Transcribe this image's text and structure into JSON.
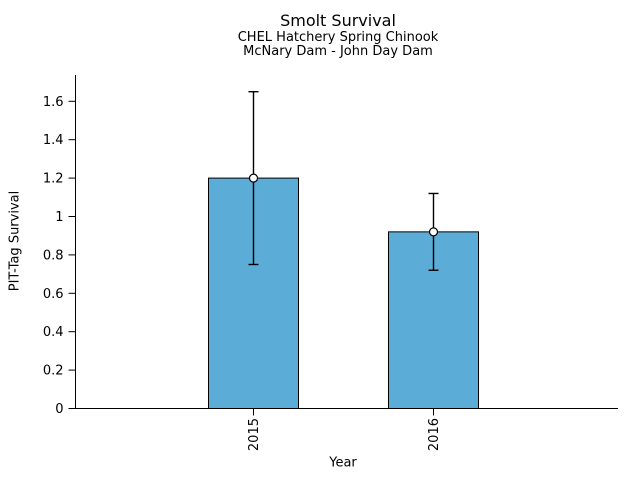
{
  "chart_data": {
    "type": "bar",
    "title": "Smolt Survival",
    "subtitle1": "CHEL Hatchery Spring Chinook",
    "subtitle2": "McNary Dam - John Day Dam",
    "xlabel": "Year",
    "ylabel": "PIT-Tag Survival",
    "categories": [
      "2015",
      "2016"
    ],
    "values": [
      1.2,
      0.92
    ],
    "error_low": [
      0.75,
      0.72
    ],
    "error_high": [
      1.65,
      1.12
    ],
    "yticks": [
      0,
      0.2,
      0.4,
      0.6,
      0.8,
      1,
      1.2,
      1.4,
      1.6
    ],
    "ytick_labels": [
      "0",
      "0.2",
      "0.4",
      "0.6",
      "0.8",
      "1",
      "1.2",
      "1.4",
      "1.6"
    ],
    "ylim": [
      0,
      1.74
    ],
    "grid": false,
    "legend": null,
    "marker": "open-circle",
    "colors": {
      "bar_fill": "#5BACD6",
      "bar_edge": "#000000",
      "errorbar": "#000000",
      "axis": "#000000",
      "background": "#ffffff"
    }
  }
}
